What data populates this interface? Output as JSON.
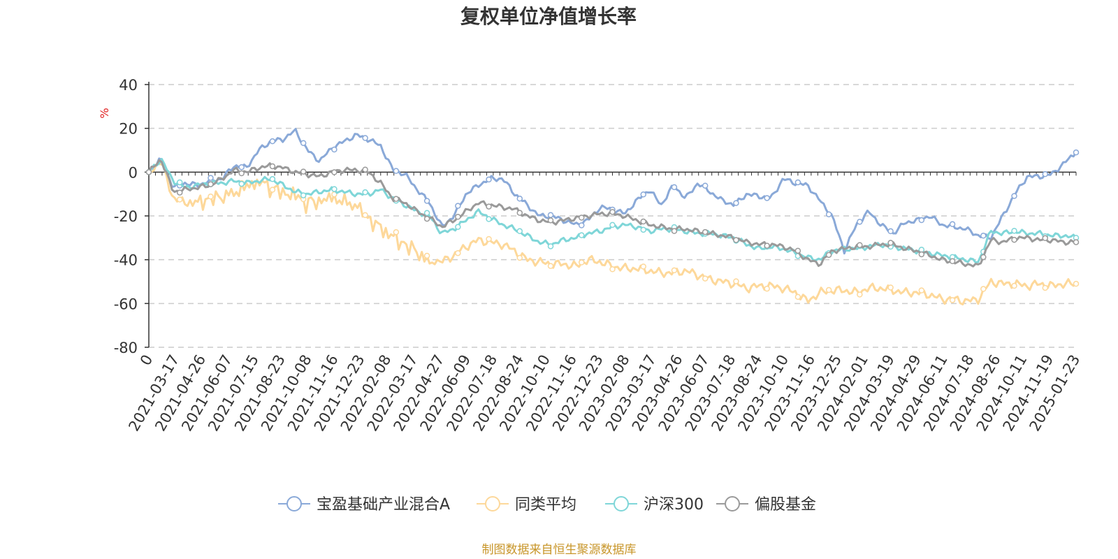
{
  "chart_data": {
    "type": "line",
    "title": "复权单位净值增长率",
    "ylabel": "%",
    "xlabel": "",
    "ylim": [
      -80,
      40
    ],
    "yticks": [
      40,
      20,
      0,
      -20,
      -40,
      -60,
      -80
    ],
    "grid": true,
    "legend_position": "bottom-center",
    "x_tick_labels": [
      "0",
      "2021-03-17",
      "2021-04-26",
      "2021-06-07",
      "2021-07-15",
      "2021-08-23",
      "2021-10-08",
      "2021-11-16",
      "2021-12-23",
      "2022-02-08",
      "2022-03-17",
      "2022-04-27",
      "2022-06-09",
      "2022-07-18",
      "2022-08-24",
      "2022-10-10",
      "2022-11-16",
      "2022-12-23",
      "2023-02-08",
      "2023-03-17",
      "2023-04-26",
      "2023-06-07",
      "2023-07-18",
      "2023-08-24",
      "2023-10-10",
      "2023-11-16",
      "2023-12-25",
      "2024-02-01",
      "2024-03-19",
      "2024-04-29",
      "2024-06-11",
      "2024-07-18",
      "2024-08-26",
      "2024-10-11",
      "2024-11-19",
      "2025-01-23"
    ],
    "series": [
      {
        "name": "宝盈基础产业混合A",
        "color": "#8aa9d8",
        "values": [
          0,
          6,
          -7,
          -5,
          -6,
          -4,
          -3,
          3,
          2,
          10,
          14,
          15,
          19,
          10,
          5,
          11,
          14,
          17,
          15,
          12,
          1,
          -1,
          -8,
          -14,
          -25,
          -20,
          -10,
          -6,
          -3,
          -3,
          -10,
          -15,
          -20,
          -20,
          -22,
          -24,
          -22,
          -16,
          -17,
          -19,
          -13,
          -8,
          -15,
          -6,
          -12,
          -5,
          -9,
          -13,
          -15,
          -10,
          -11,
          -12,
          -3,
          -5,
          -6,
          -13,
          -20,
          -36,
          -24,
          -18,
          -24,
          -28,
          -23,
          -22,
          -20,
          -24,
          -25,
          -26,
          -29,
          -30,
          -20,
          -10,
          -2,
          -2,
          -1,
          4,
          9
        ]
      },
      {
        "name": "同类平均",
        "color": "#fdd89a",
        "values": [
          0,
          5,
          -12,
          -14,
          -12,
          -11,
          -10,
          -8,
          -5,
          -3,
          -6,
          -8,
          -9,
          -13,
          -12,
          -10,
          -12,
          -14,
          -20,
          -24,
          -28,
          -32,
          -35,
          -40,
          -41,
          -38,
          -34,
          -31,
          -32,
          -33,
          -36,
          -40,
          -41,
          -42,
          -42,
          -43,
          -40,
          -41,
          -43,
          -44,
          -44,
          -45,
          -46,
          -46,
          -45,
          -47,
          -49,
          -50,
          -51,
          -53,
          -52,
          -52,
          -53,
          -55,
          -59,
          -55,
          -54,
          -54,
          -55,
          -53,
          -53,
          -54,
          -55,
          -55,
          -56,
          -58,
          -58,
          -59,
          -58,
          -50,
          -51,
          -51,
          -52,
          -51,
          -52,
          -51,
          -51
        ]
      },
      {
        "name": "沪深300",
        "color": "#7fd6d8",
        "values": [
          0,
          6,
          -4,
          -7,
          -6,
          -5,
          -5,
          -4,
          -5,
          -4,
          -3,
          -6,
          -9,
          -10,
          -9,
          -8,
          -9,
          -10,
          -10,
          -8,
          -12,
          -15,
          -18,
          -20,
          -28,
          -26,
          -22,
          -18,
          -21,
          -24,
          -26,
          -29,
          -32,
          -33,
          -31,
          -30,
          -28,
          -27,
          -25,
          -24,
          -25,
          -27,
          -26,
          -26,
          -27,
          -28,
          -28,
          -29,
          -30,
          -33,
          -35,
          -34,
          -35,
          -37,
          -39,
          -40,
          -36,
          -35,
          -35,
          -34,
          -33,
          -34,
          -35,
          -36,
          -37,
          -38,
          -39,
          -40,
          -41,
          -27,
          -28,
          -27,
          -28,
          -28,
          -29,
          -29,
          -30
        ]
      },
      {
        "name": "偏股基金",
        "color": "#9a9a9a",
        "values": [
          0,
          6,
          -9,
          -8,
          -7,
          -6,
          -3,
          1,
          0,
          2,
          3,
          2,
          0,
          -1,
          -2,
          0,
          1,
          1,
          0,
          -5,
          -12,
          -14,
          -18,
          -21,
          -25,
          -22,
          -18,
          -14,
          -15,
          -16,
          -17,
          -20,
          -22,
          -23,
          -22,
          -21,
          -20,
          -19,
          -19,
          -20,
          -22,
          -24,
          -25,
          -26,
          -26,
          -27,
          -28,
          -29,
          -30,
          -32,
          -33,
          -33,
          -34,
          -36,
          -40,
          -42,
          -36,
          -35,
          -34,
          -34,
          -33,
          -33,
          -35,
          -36,
          -38,
          -40,
          -41,
          -42,
          -43,
          -31,
          -32,
          -30,
          -30,
          -31,
          -31,
          -32,
          -32
        ]
      }
    ]
  },
  "source_note": "制图数据来自恒生聚源数据库"
}
